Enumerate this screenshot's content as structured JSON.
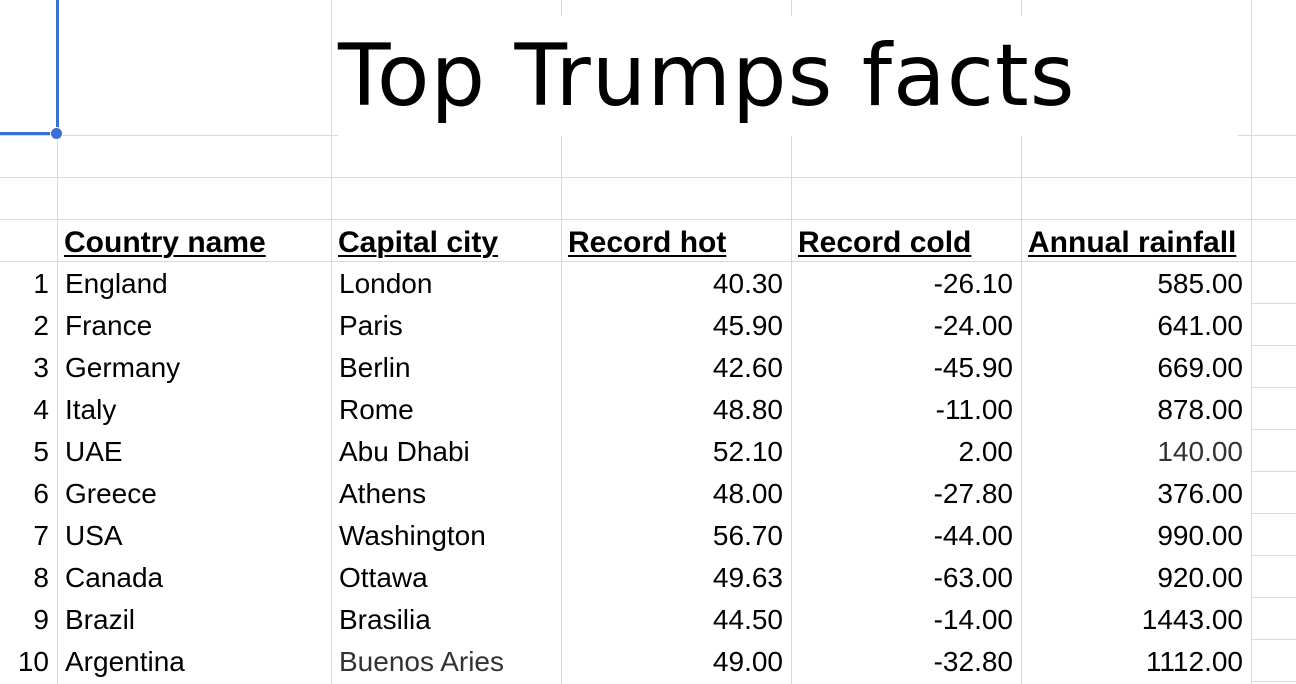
{
  "title": "Top Trumps facts",
  "columns": [
    "Country name",
    "Capital city",
    "Record hot",
    "Record cold",
    "Annual rainfall"
  ],
  "rows": [
    {
      "index": "1",
      "country": "England",
      "capital": "London",
      "hot": "40.30",
      "cold": "-26.10",
      "rain": "585.00"
    },
    {
      "index": "2",
      "country": "France",
      "capital": "Paris",
      "hot": "45.90",
      "cold": "-24.00",
      "rain": "641.00"
    },
    {
      "index": "3",
      "country": "Germany",
      "capital": "Berlin",
      "hot": "42.60",
      "cold": "-45.90",
      "rain": "669.00"
    },
    {
      "index": "4",
      "country": "Italy",
      "capital": "Rome",
      "hot": "48.80",
      "cold": "-11.00",
      "rain": "878.00"
    },
    {
      "index": "5",
      "country": "UAE",
      "capital": "Abu Dhabi",
      "hot": "52.10",
      "cold": "2.00",
      "rain": "140.00"
    },
    {
      "index": "6",
      "country": "Greece",
      "capital": "Athens",
      "hot": "48.00",
      "cold": "-27.80",
      "rain": "376.00"
    },
    {
      "index": "7",
      "country": "USA",
      "capital": "Washington",
      "hot": "56.70",
      "cold": "-44.00",
      "rain": "990.00"
    },
    {
      "index": "8",
      "country": "Canada",
      "capital": "Ottawa",
      "hot": "49.63",
      "cold": "-63.00",
      "rain": "920.00"
    },
    {
      "index": "9",
      "country": "Brazil",
      "capital": "Brasilia",
      "hot": "44.50",
      "cold": "-14.00",
      "rain": "1443.00"
    },
    {
      "index": "10",
      "country": "Argentina",
      "capital": "Buenos Aries",
      "hot": "49.00",
      "cold": "-32.80",
      "rain": "1112.00"
    }
  ],
  "colors": {
    "selection": "#3b6fd4",
    "gridline": "#d9d9d9"
  }
}
